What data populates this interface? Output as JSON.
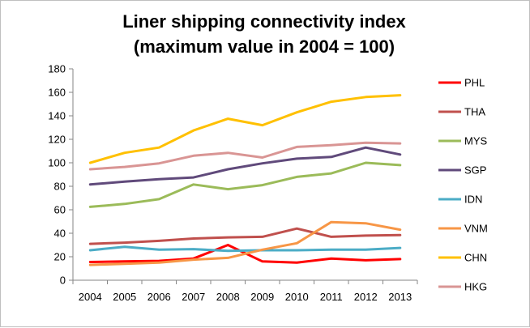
{
  "chart_data": {
    "type": "line",
    "title": "Liner shipping connectivity index",
    "subtitle": "(maximum value in 2004 = 100)",
    "xlabel": "",
    "ylabel": "",
    "categories": [
      "2004",
      "2005",
      "2006",
      "2007",
      "2008",
      "2009",
      "2010",
      "2011",
      "2012",
      "2013"
    ],
    "ylim": [
      0,
      180
    ],
    "yticks": [
      0,
      20,
      40,
      60,
      80,
      100,
      120,
      140,
      160,
      180
    ],
    "grid": false,
    "legend": "right",
    "series": [
      {
        "name": "PHL",
        "color": "#ff0000",
        "values": [
          15.5,
          16.0,
          16.5,
          18.5,
          30.0,
          16.0,
          15.0,
          18.5,
          17.0,
          18.0
        ]
      },
      {
        "name": "THA",
        "color": "#c0504d",
        "values": [
          31.0,
          32.0,
          33.5,
          35.5,
          36.5,
          37.0,
          44.0,
          37.0,
          38.0,
          38.5
        ]
      },
      {
        "name": "MYS",
        "color": "#9bbb59",
        "values": [
          62.5,
          65.0,
          69.0,
          81.5,
          77.5,
          81.0,
          88.0,
          91.0,
          100.0,
          98.0
        ]
      },
      {
        "name": "SGP",
        "color": "#604a7b",
        "values": [
          81.5,
          84.0,
          86.0,
          87.5,
          94.5,
          99.5,
          103.5,
          105.0,
          113.0,
          107.0
        ]
      },
      {
        "name": "IDN",
        "color": "#4bacc6",
        "values": [
          25.5,
          28.5,
          26.0,
          26.5,
          25.0,
          25.5,
          25.5,
          26.0,
          26.0,
          27.5
        ]
      },
      {
        "name": "VNM",
        "color": "#f79646",
        "values": [
          13.0,
          14.0,
          15.0,
          17.5,
          19.0,
          26.0,
          31.5,
          49.5,
          48.5,
          43.0
        ]
      },
      {
        "name": "CHN",
        "color": "#ffc000",
        "values": [
          100.0,
          108.5,
          113.0,
          127.5,
          137.5,
          132.0,
          143.0,
          152.0,
          156.0,
          157.5
        ]
      },
      {
        "name": "HKG",
        "color": "#d99594",
        "values": [
          94.5,
          96.5,
          99.5,
          106.0,
          108.5,
          104.5,
          113.5,
          115.0,
          117.0,
          116.5
        ]
      }
    ]
  }
}
